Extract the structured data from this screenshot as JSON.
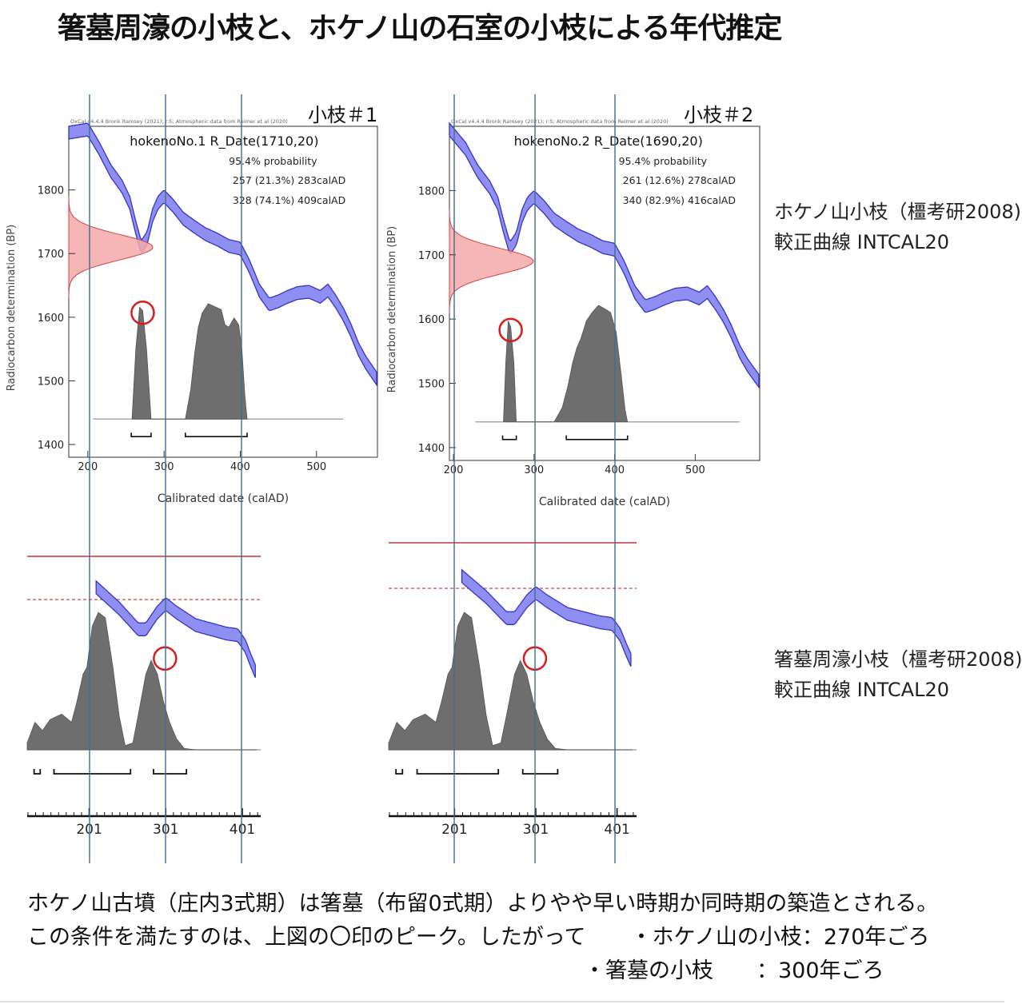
{
  "title": "箸墓周濠の小枝と、ホケノ山の石室の小枝による年代推定",
  "side_notes": [
    {
      "line1": "ホケノ山小枝（橿考研2008)",
      "line2": "較正曲線  INTCAL20"
    },
    {
      "line1": "箸墓周濠小枝（橿考研2008)",
      "line2": "較正曲線  INTCAL20"
    }
  ],
  "bottom_text": {
    "line1": "ホケノ山古墳（庄内3式期）は箸墓（布留0式期）よりやや早い時期か同時期の築造とされる。",
    "line2_a": "この条件を満たすのは、上図の〇印のピーク。したがって",
    "line2_b": "・ホケノ山の小枝：270年ごろ",
    "line3": "・箸墓の小枝　　：300年ごろ"
  },
  "colors": {
    "curve_fill": "#8f8ff2",
    "curve_edge": "#3434c8",
    "prob_gray": "#6e6e6e",
    "red_dist": "#f4a9a9",
    "red_circle": "#d81c1c",
    "guide_line": "#3f6f8f",
    "ref_line": "#c96a6a"
  },
  "chart_data": [
    {
      "type": "area",
      "label": "小枝＃1",
      "header": "OxCal v4.4.4 Bronk Ramsey (2021); r:5; Atmospheric data from Reimer et al (2020)",
      "title": "hokenoNo.1 R_Date(1710,20)",
      "prob_line": "95.4% probability",
      "ranges": [
        "257 (21.3%) 283calAD",
        "328 (74.1%) 409calAD"
      ],
      "xlabel": "Calibrated date (calAD)",
      "ylabel": "Radiocarbon determination (BP)",
      "xlim": [
        175,
        580
      ],
      "ylim": [
        1380,
        1900
      ],
      "xticks": [
        200,
        300,
        400,
        500
      ],
      "yticks": [
        1400,
        1500,
        1600,
        1700,
        1800
      ],
      "rdate": {
        "mean": 1710,
        "sd": 20
      },
      "curve": [
        [
          175,
          1890
        ],
        [
          200,
          1895
        ],
        [
          215,
          1865
        ],
        [
          230,
          1830
        ],
        [
          245,
          1805
        ],
        [
          255,
          1780
        ],
        [
          262,
          1745
        ],
        [
          270,
          1710
        ],
        [
          278,
          1725
        ],
        [
          285,
          1760
        ],
        [
          292,
          1780
        ],
        [
          300,
          1790
        ],
        [
          312,
          1775
        ],
        [
          325,
          1755
        ],
        [
          340,
          1742
        ],
        [
          355,
          1730
        ],
        [
          370,
          1722
        ],
        [
          385,
          1712
        ],
        [
          400,
          1708
        ],
        [
          412,
          1680
        ],
        [
          425,
          1642
        ],
        [
          438,
          1620
        ],
        [
          450,
          1625
        ],
        [
          462,
          1632
        ],
        [
          475,
          1638
        ],
        [
          490,
          1640
        ],
        [
          505,
          1632
        ],
        [
          515,
          1642
        ],
        [
          525,
          1625
        ],
        [
          535,
          1605
        ],
        [
          545,
          1580
        ],
        [
          555,
          1550
        ],
        [
          565,
          1528
        ],
        [
          580,
          1502
        ]
      ],
      "prob": [
        [
          258,
          0
        ],
        [
          263,
          0.6
        ],
        [
          268,
          0.95
        ],
        [
          272,
          0.92
        ],
        [
          277,
          0.6
        ],
        [
          283,
          0
        ],
        [
          328,
          0
        ],
        [
          335,
          0.25
        ],
        [
          340,
          0.55
        ],
        [
          345,
          0.78
        ],
        [
          350,
          0.9
        ],
        [
          358,
          0.98
        ],
        [
          368,
          0.95
        ],
        [
          375,
          0.93
        ],
        [
          380,
          0.8
        ],
        [
          385,
          0.78
        ],
        [
          392,
          0.86
        ],
        [
          398,
          0.8
        ],
        [
          402,
          0.6
        ],
        [
          406,
          0.2
        ],
        [
          409,
          0
        ]
      ],
      "hpd": [
        [
          257,
          283
        ],
        [
          328,
          409
        ]
      ],
      "circle": {
        "x": 272,
        "y": 1607
      }
    },
    {
      "type": "area",
      "label": "小枝＃2",
      "header": "OxCal v4.4.4 Bronk Ramsey (2021); r:5; Atmospheric data from Reimer et al (2020)",
      "title": "hokenoNo.2 R_Date(1690,20)",
      "prob_line": "95.4% probability",
      "ranges": [
        "261 (12.6%) 278calAD",
        "340 (82.9%) 416calAD"
      ],
      "xlabel": "Calibrated date (calAD)",
      "ylabel": "Radiocarbon determination (BP)",
      "xlim": [
        195,
        580
      ],
      "ylim": [
        1380,
        1900
      ],
      "xticks": [
        200,
        300,
        400,
        500
      ],
      "yticks": [
        1400,
        1500,
        1600,
        1700,
        1800
      ],
      "rdate": {
        "mean": 1690,
        "sd": 20
      },
      "curve": [
        [
          195,
          1895
        ],
        [
          215,
          1865
        ],
        [
          230,
          1830
        ],
        [
          245,
          1805
        ],
        [
          255,
          1780
        ],
        [
          262,
          1745
        ],
        [
          270,
          1710
        ],
        [
          278,
          1725
        ],
        [
          285,
          1760
        ],
        [
          292,
          1780
        ],
        [
          300,
          1790
        ],
        [
          312,
          1775
        ],
        [
          325,
          1755
        ],
        [
          340,
          1742
        ],
        [
          355,
          1730
        ],
        [
          370,
          1722
        ],
        [
          385,
          1712
        ],
        [
          400,
          1708
        ],
        [
          412,
          1680
        ],
        [
          425,
          1642
        ],
        [
          438,
          1620
        ],
        [
          450,
          1625
        ],
        [
          462,
          1632
        ],
        [
          475,
          1638
        ],
        [
          490,
          1640
        ],
        [
          505,
          1632
        ],
        [
          515,
          1642
        ],
        [
          525,
          1625
        ],
        [
          535,
          1605
        ],
        [
          545,
          1580
        ],
        [
          555,
          1550
        ],
        [
          565,
          1528
        ],
        [
          580,
          1502
        ]
      ],
      "prob": [
        [
          262,
          0
        ],
        [
          265,
          0.5
        ],
        [
          268,
          0.85
        ],
        [
          271,
          0.8
        ],
        [
          275,
          0.5
        ],
        [
          278,
          0
        ],
        [
          325,
          0
        ],
        [
          335,
          0.12
        ],
        [
          342,
          0.3
        ],
        [
          348,
          0.5
        ],
        [
          353,
          0.62
        ],
        [
          358,
          0.7
        ],
        [
          365,
          0.85
        ],
        [
          372,
          0.92
        ],
        [
          380,
          0.98
        ],
        [
          388,
          0.95
        ],
        [
          395,
          0.92
        ],
        [
          402,
          0.75
        ],
        [
          408,
          0.4
        ],
        [
          413,
          0.1
        ],
        [
          416,
          0
        ]
      ],
      "hpd": [
        [
          261,
          278
        ],
        [
          340,
          416
        ]
      ],
      "circle": {
        "x": 271,
        "y": 1583
      }
    },
    {
      "type": "area",
      "xlim": [
        120,
        425
      ],
      "xticks": [
        201,
        301,
        401
      ],
      "curve": [
        [
          210,
          1.05
        ],
        [
          240,
          0.8
        ],
        [
          265,
          0.55
        ],
        [
          275,
          0.55
        ],
        [
          290,
          0.75
        ],
        [
          301,
          0.85
        ],
        [
          315,
          0.75
        ],
        [
          340,
          0.6
        ],
        [
          360,
          0.55
        ],
        [
          380,
          0.5
        ],
        [
          395,
          0.48
        ],
        [
          405,
          0.35
        ],
        [
          412,
          0.18
        ],
        [
          418,
          0.05
        ]
      ],
      "prob": [
        [
          120,
          0.05
        ],
        [
          130,
          0.2
        ],
        [
          140,
          0.14
        ],
        [
          150,
          0.22
        ],
        [
          165,
          0.26
        ],
        [
          178,
          0.2
        ],
        [
          185,
          0.35
        ],
        [
          193,
          0.55
        ],
        [
          198,
          0.6
        ],
        [
          205,
          0.9
        ],
        [
          213,
          1.0
        ],
        [
          222,
          0.96
        ],
        [
          232,
          0.6
        ],
        [
          240,
          0.25
        ],
        [
          248,
          0.03
        ],
        [
          258,
          0.05
        ],
        [
          265,
          0.25
        ],
        [
          275,
          0.55
        ],
        [
          282,
          0.65
        ],
        [
          290,
          0.55
        ],
        [
          298,
          0.35
        ],
        [
          306,
          0.2
        ],
        [
          315,
          0.08
        ],
        [
          325,
          0.01
        ],
        [
          340,
          0
        ],
        [
          420,
          0
        ]
      ],
      "hpd": [
        [
          129,
          137
        ],
        [
          155,
          255
        ],
        [
          285,
          328
        ]
      ],
      "circle": {
        "x": 300,
        "y": 0.85
      }
    },
    {
      "type": "area",
      "xlim": [
        120,
        425
      ],
      "xticks": [
        201,
        301,
        401
      ],
      "curve": [
        [
          210,
          1.05
        ],
        [
          240,
          0.8
        ],
        [
          265,
          0.55
        ],
        [
          275,
          0.55
        ],
        [
          290,
          0.75
        ],
        [
          301,
          0.85
        ],
        [
          315,
          0.75
        ],
        [
          340,
          0.6
        ],
        [
          360,
          0.55
        ],
        [
          380,
          0.5
        ],
        [
          395,
          0.48
        ],
        [
          405,
          0.35
        ],
        [
          412,
          0.18
        ],
        [
          418,
          0.05
        ]
      ],
      "prob": [
        [
          120,
          0.05
        ],
        [
          130,
          0.2
        ],
        [
          140,
          0.14
        ],
        [
          150,
          0.22
        ],
        [
          165,
          0.26
        ],
        [
          178,
          0.2
        ],
        [
          185,
          0.35
        ],
        [
          193,
          0.55
        ],
        [
          198,
          0.6
        ],
        [
          205,
          0.9
        ],
        [
          213,
          1.0
        ],
        [
          222,
          0.96
        ],
        [
          232,
          0.6
        ],
        [
          240,
          0.25
        ],
        [
          248,
          0.03
        ],
        [
          258,
          0.05
        ],
        [
          265,
          0.25
        ],
        [
          275,
          0.55
        ],
        [
          282,
          0.65
        ],
        [
          290,
          0.55
        ],
        [
          298,
          0.35
        ],
        [
          306,
          0.2
        ],
        [
          315,
          0.08
        ],
        [
          325,
          0.01
        ],
        [
          340,
          0
        ],
        [
          420,
          0
        ]
      ],
      "hpd": [
        [
          129,
          137
        ],
        [
          155,
          255
        ],
        [
          285,
          328
        ]
      ],
      "circle": {
        "x": 300,
        "y": 0.85
      }
    }
  ]
}
